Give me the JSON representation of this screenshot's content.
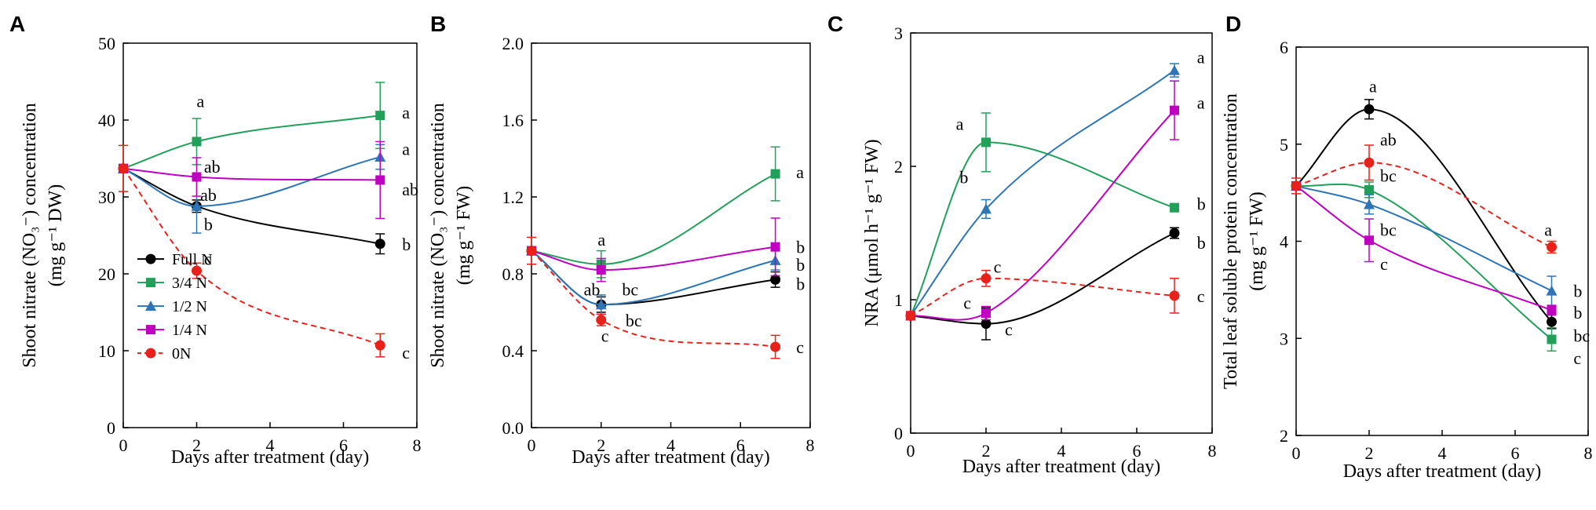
{
  "series_styles": [
    {
      "name": "Full N",
      "color": "#000000",
      "marker": "circle",
      "dashed": false
    },
    {
      "name": "3/4 N",
      "color": "#22a05a",
      "marker": "square",
      "dashed": false
    },
    {
      "name": "1/2 N",
      "color": "#2e75b6",
      "marker": "triangle",
      "dashed": false
    },
    {
      "name": "1/4 N",
      "color": "#c000c0",
      "marker": "square",
      "dashed": false
    },
    {
      "name": "0N",
      "color": "#e8211b",
      "marker": "circle",
      "dashed": true
    }
  ],
  "chart_data": [
    {
      "panel": "A",
      "type": "line",
      "xlabel": "Days after treatment (day)",
      "ylabel_lines": [
        "Shoot nitrate (NO₃⁻) concentration",
        "(mg g⁻¹ DW)"
      ],
      "x": [
        0,
        2,
        7
      ],
      "xlim": [
        0,
        8
      ],
      "xticks": [
        0,
        2,
        4,
        6,
        8
      ],
      "ylim": [
        0,
        50
      ],
      "yticks": [
        0,
        10,
        20,
        30,
        40,
        50
      ],
      "ytick_labels": [
        "0",
        "10",
        "20",
        "30",
        "40",
        "50"
      ],
      "legend": {
        "position": "bottom-left",
        "entries": [
          "Full N",
          "3/4 N",
          "1/2 N",
          "1/4 N",
          "0N"
        ]
      },
      "series": [
        {
          "name": "Full N",
          "values": [
            33.7,
            28.8,
            23.9
          ],
          "errors": [
            0,
            0.8,
            1.3
          ]
        },
        {
          "name": "3/4 N",
          "values": [
            33.7,
            37.2,
            40.6
          ],
          "errors": [
            0,
            3.0,
            4.3
          ]
        },
        {
          "name": "1/2 N",
          "values": [
            33.7,
            28.8,
            35.2
          ],
          "errors": [
            0,
            3.5,
            1.6
          ]
        },
        {
          "name": "1/4 N",
          "values": [
            33.7,
            32.6,
            32.2
          ],
          "errors": [
            0,
            2.5,
            5.0
          ]
        },
        {
          "name": "0N",
          "values": [
            33.7,
            20.4,
            10.7
          ],
          "errors": [
            3.0,
            1.0,
            1.5
          ]
        }
      ],
      "annotations": [
        {
          "text": "a",
          "x": 2,
          "y": 42.5
        },
        {
          "text": "ab",
          "x": 2.2,
          "y": 34.0
        },
        {
          "text": "ab",
          "x": 2.1,
          "y": 30.3
        },
        {
          "text": "b",
          "x": 2.2,
          "y": 26.5
        },
        {
          "text": "c",
          "x": 2.2,
          "y": 22.0
        },
        {
          "text": "a",
          "x": 7.6,
          "y": 41.0
        },
        {
          "text": "a",
          "x": 7.6,
          "y": 36.3
        },
        {
          "text": "ab",
          "x": 7.6,
          "y": 31.0
        },
        {
          "text": "b",
          "x": 7.6,
          "y": 23.9
        },
        {
          "text": "c",
          "x": 7.6,
          "y": 9.8
        }
      ]
    },
    {
      "panel": "B",
      "type": "line",
      "xlabel": "Days after treatment (day)",
      "ylabel_lines": [
        "Shoot nitrate (NO₃⁻) concentration",
        "(mg g⁻¹ FW)"
      ],
      "x": [
        0,
        2,
        7
      ],
      "xlim": [
        0,
        8
      ],
      "xticks": [
        0,
        2,
        4,
        6,
        8
      ],
      "ylim": [
        0,
        2.0
      ],
      "yticks": [
        0,
        0.4,
        0.8,
        1.2,
        1.6,
        2.0
      ],
      "ytick_labels": [
        "0.0",
        "0.4",
        "0.8",
        "1.2",
        "1.6",
        "2.0"
      ],
      "series": [
        {
          "name": "Full N",
          "values": [
            0.92,
            0.64,
            0.77
          ],
          "errors": [
            0,
            0.04,
            0.04
          ]
        },
        {
          "name": "3/4 N",
          "values": [
            0.92,
            0.85,
            1.32
          ],
          "errors": [
            0,
            0.07,
            0.14
          ]
        },
        {
          "name": "1/2 N",
          "values": [
            0.92,
            0.64,
            0.87
          ],
          "errors": [
            0,
            0.05,
            0.05
          ]
        },
        {
          "name": "1/4 N",
          "values": [
            0.92,
            0.82,
            0.94
          ],
          "errors": [
            0,
            0.06,
            0.15
          ]
        },
        {
          "name": "0N",
          "values": [
            0.92,
            0.56,
            0.42
          ],
          "errors": [
            0.07,
            0.03,
            0.06
          ]
        }
      ],
      "annotations": [
        {
          "text": "a",
          "x": 1.9,
          "y": 0.98
        },
        {
          "text": "ab",
          "x": 1.5,
          "y": 0.72
        },
        {
          "text": "bc",
          "x": 2.6,
          "y": 0.72
        },
        {
          "text": "bc",
          "x": 2.7,
          "y": 0.56
        },
        {
          "text": "c",
          "x": 2.0,
          "y": 0.48
        },
        {
          "text": "a",
          "x": 7.6,
          "y": 1.33
        },
        {
          "text": "b",
          "x": 7.6,
          "y": 0.94
        },
        {
          "text": "b",
          "x": 7.6,
          "y": 0.85
        },
        {
          "text": "b",
          "x": 7.6,
          "y": 0.75
        },
        {
          "text": "c",
          "x": 7.6,
          "y": 0.42
        }
      ]
    },
    {
      "panel": "C",
      "type": "line",
      "xlabel": "Days after treatment (day)",
      "ylabel_lines": [
        "NRA  (μmol h⁻¹ g⁻¹ FW)"
      ],
      "x": [
        0,
        2,
        7
      ],
      "xlim": [
        0,
        8
      ],
      "xticks": [
        0,
        2,
        4,
        6,
        8
      ],
      "ylim": [
        0,
        3
      ],
      "yticks": [
        0,
        1,
        2,
        3
      ],
      "ytick_labels": [
        "0",
        "1",
        "2",
        "3"
      ],
      "series": [
        {
          "name": "Full N",
          "values": [
            0.88,
            0.82,
            1.5
          ],
          "errors": [
            0,
            0.12,
            0.04
          ]
        },
        {
          "name": "3/4 N",
          "values": [
            0.88,
            2.18,
            1.69
          ],
          "errors": [
            0,
            0.22,
            0.03
          ]
        },
        {
          "name": "1/2 N",
          "values": [
            0.88,
            1.68,
            2.72
          ],
          "errors": [
            0,
            0.07,
            0.05
          ]
        },
        {
          "name": "1/4 N",
          "values": [
            0.88,
            0.9,
            2.42
          ],
          "errors": [
            0,
            0.05,
            0.22
          ]
        },
        {
          "name": "0N",
          "values": [
            0.88,
            1.16,
            1.03
          ],
          "errors": [
            0.03,
            0.06,
            0.13
          ]
        }
      ],
      "annotations": [
        {
          "text": "a",
          "x": 1.2,
          "y": 2.32
        },
        {
          "text": "b",
          "x": 1.3,
          "y": 1.92
        },
        {
          "text": "c",
          "x": 2.2,
          "y": 1.25
        },
        {
          "text": "c",
          "x": 1.4,
          "y": 0.98
        },
        {
          "text": "c",
          "x": 2.5,
          "y": 0.78
        },
        {
          "text": "a",
          "x": 7.6,
          "y": 2.82
        },
        {
          "text": "a",
          "x": 7.6,
          "y": 2.48
        },
        {
          "text": "b",
          "x": 7.6,
          "y": 1.72
        },
        {
          "text": "b",
          "x": 7.6,
          "y": 1.43
        },
        {
          "text": "c",
          "x": 7.6,
          "y": 1.03
        }
      ]
    },
    {
      "panel": "D",
      "type": "line",
      "xlabel": "Days after treatment (day)",
      "ylabel_lines": [
        "Total leaf soluble protein concentration",
        "(mg g⁻¹ FW)"
      ],
      "x": [
        0,
        2,
        7
      ],
      "xlim": [
        0,
        8
      ],
      "xticks": [
        0,
        2,
        4,
        6,
        8
      ],
      "ylim": [
        2,
        6
      ],
      "yticks": [
        2,
        3,
        4,
        5,
        6
      ],
      "ytick_labels": [
        "2",
        "3",
        "4",
        "5",
        "6"
      ],
      "series": [
        {
          "name": "Full N",
          "values": [
            4.57,
            5.36,
            3.17
          ],
          "errors": [
            0,
            0.1,
            0.07
          ]
        },
        {
          "name": "3/4 N",
          "values": [
            4.57,
            4.53,
            2.99
          ],
          "errors": [
            0,
            0.08,
            0.12
          ]
        },
        {
          "name": "1/2 N",
          "values": [
            4.57,
            4.38,
            3.49
          ],
          "errors": [
            0,
            0.1,
            0.15
          ]
        },
        {
          "name": "1/4 N",
          "values": [
            4.57,
            4.01,
            3.29
          ],
          "errors": [
            0,
            0.22,
            0.05
          ]
        },
        {
          "name": "0N",
          "values": [
            4.57,
            4.81,
            3.94
          ],
          "errors": [
            0.08,
            0.18,
            0.06
          ]
        }
      ],
      "annotations": [
        {
          "text": "a",
          "x": 2.0,
          "y": 5.6
        },
        {
          "text": "ab",
          "x": 2.3,
          "y": 5.05
        },
        {
          "text": "bc",
          "x": 2.3,
          "y": 4.68
        },
        {
          "text": "bc",
          "x": 2.3,
          "y": 4.12
        },
        {
          "text": "c",
          "x": 2.3,
          "y": 3.77
        },
        {
          "text": "a",
          "x": 6.8,
          "y": 4.12
        },
        {
          "text": "b",
          "x": 7.6,
          "y": 3.49
        },
        {
          "text": "b",
          "x": 7.6,
          "y": 3.27
        },
        {
          "text": "bc",
          "x": 7.6,
          "y": 3.03
        },
        {
          "text": "c",
          "x": 7.6,
          "y": 2.8
        }
      ]
    }
  ]
}
